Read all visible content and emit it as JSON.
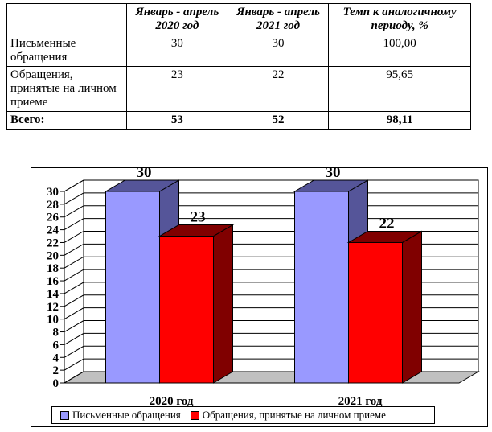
{
  "table": {
    "headers": [
      "",
      "Январь - апрель 2020 год",
      "Январь - апрель 2021 год",
      "Темп к аналогичному периоду, %"
    ],
    "rows": [
      [
        "Письменные обращения",
        "30",
        "30",
        "100,00"
      ],
      [
        "Обращения, принятые на личном приеме",
        "23",
        "22",
        "95,65"
      ],
      [
        "Всего:",
        "53",
        "52",
        "98,11"
      ]
    ]
  },
  "chart_data": {
    "type": "bar",
    "categories": [
      "2020 год",
      "2021 год"
    ],
    "series": [
      {
        "name": "Письменные обращения",
        "values": [
          30,
          30
        ],
        "color": "#9999ff"
      },
      {
        "name": "Обращения, принятые на личном приеме",
        "values": [
          23,
          22
        ],
        "color": "#ff0000"
      }
    ],
    "ylim": [
      0,
      30
    ],
    "yticks": [
      0,
      2,
      4,
      6,
      8,
      10,
      12,
      14,
      16,
      18,
      20,
      22,
      24,
      26,
      28,
      30
    ],
    "grid": true,
    "three_d": true,
    "legend_position": "bottom"
  },
  "colors": {
    "series1_side": "#555599",
    "series2_side": "#800000",
    "wall": "#ffffff",
    "floor": "#c0c0c0"
  }
}
